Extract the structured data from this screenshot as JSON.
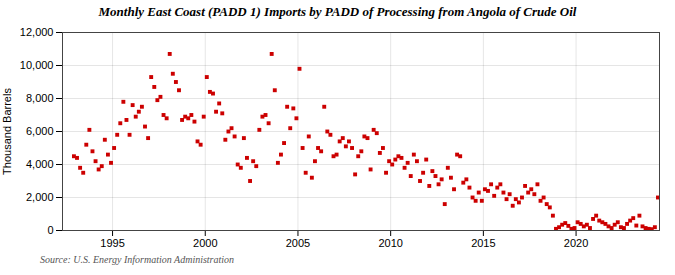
{
  "chart_data": {
    "type": "scatter",
    "title": "Monthly East Coast (PADD 1) Imports by PADD of Processing from Angola of Crude Oil",
    "ylabel": "Thousand Barrels",
    "source": "Source: U.S. Energy Information Administration",
    "color": "#cc0000",
    "marker": "square",
    "grid": true,
    "xlim": [
      1992.3,
      2024.5
    ],
    "ylim": [
      0,
      12000
    ],
    "xticks": [
      1995,
      2000,
      2005,
      2010,
      2015,
      2020
    ],
    "yticks": [
      0,
      {
        "value": 2000,
        "label": "2,000"
      },
      {
        "value": 4000,
        "label": "4,000"
      },
      {
        "value": 6000,
        "label": "6,000"
      },
      {
        "value": 8000,
        "label": "8,000"
      },
      {
        "value": 10000,
        "label": "10,000"
      },
      {
        "value": 12000,
        "label": "12,000"
      }
    ],
    "x": [
      1992.917,
      1993.083,
      1993.25,
      1993.417,
      1993.583,
      1993.75,
      1993.917,
      1994.083,
      1994.25,
      1994.417,
      1994.583,
      1994.75,
      1994.917,
      1995.083,
      1995.25,
      1995.417,
      1995.583,
      1995.75,
      1995.917,
      1996.083,
      1996.25,
      1996.417,
      1996.583,
      1996.75,
      1996.917,
      1997.083,
      1997.25,
      1997.417,
      1997.583,
      1997.75,
      1997.917,
      1998.083,
      1998.25,
      1998.417,
      1998.583,
      1998.75,
      1998.917,
      1999.083,
      1999.25,
      1999.417,
      1999.583,
      1999.75,
      1999.917,
      2000.083,
      2000.25,
      2000.417,
      2000.583,
      2000.75,
      2000.917,
      2001.083,
      2001.25,
      2001.417,
      2001.583,
      2001.75,
      2001.917,
      2002.083,
      2002.25,
      2002.417,
      2002.583,
      2002.75,
      2002.917,
      2003.083,
      2003.25,
      2003.417,
      2003.583,
      2003.75,
      2003.917,
      2004.083,
      2004.25,
      2004.417,
      2004.583,
      2004.75,
      2004.917,
      2005.083,
      2005.25,
      2005.417,
      2005.583,
      2005.75,
      2005.917,
      2006.083,
      2006.25,
      2006.417,
      2006.583,
      2006.75,
      2006.917,
      2007.083,
      2007.25,
      2007.417,
      2007.583,
      2007.75,
      2007.917,
      2008.083,
      2008.25,
      2008.417,
      2008.583,
      2008.75,
      2008.917,
      2009.083,
      2009.25,
      2009.417,
      2009.583,
      2009.75,
      2009.917,
      2010.083,
      2010.25,
      2010.417,
      2010.583,
      2010.75,
      2010.917,
      2011.083,
      2011.25,
      2011.417,
      2011.583,
      2011.75,
      2011.917,
      2012.083,
      2012.25,
      2012.417,
      2012.583,
      2012.75,
      2012.917,
      2013.083,
      2013.25,
      2013.417,
      2013.583,
      2013.75,
      2013.917,
      2014.083,
      2014.25,
      2014.417,
      2014.583,
      2014.75,
      2014.917,
      2015.083,
      2015.25,
      2015.417,
      2015.583,
      2015.75,
      2015.917,
      2016.083,
      2016.25,
      2016.417,
      2016.583,
      2016.75,
      2016.917,
      2017.083,
      2017.25,
      2017.417,
      2017.583,
      2017.75,
      2017.917,
      2018.083,
      2018.25,
      2018.417,
      2018.583,
      2018.75,
      2018.917,
      2019.083,
      2019.25,
      2019.417,
      2019.583,
      2019.75,
      2019.917,
      2020.083,
      2020.25,
      2020.417,
      2020.583,
      2020.75,
      2020.917,
      2021.083,
      2021.25,
      2021.417,
      2021.583,
      2021.75,
      2021.917,
      2022.083,
      2022.25,
      2022.417,
      2022.583,
      2022.75,
      2022.917,
      2023.083,
      2023.25,
      2023.417,
      2023.583,
      2023.75,
      2023.917,
      2024.083,
      2024.25,
      2024.417
    ],
    "values": [
      4500,
      4400,
      3800,
      3500,
      5200,
      6100,
      4800,
      4200,
      3700,
      3900,
      5500,
      4600,
      4100,
      5000,
      5800,
      6500,
      7800,
      6700,
      5800,
      7600,
      6900,
      7200,
      7500,
      6300,
      5600,
      9300,
      8700,
      7900,
      8100,
      7000,
      6800,
      10700,
      9500,
      9000,
      8500,
      6700,
      6900,
      6800,
      7000,
      6600,
      5400,
      5200,
      6900,
      9300,
      8400,
      8300,
      7200,
      7700,
      7100,
      5500,
      6000,
      6200,
      5700,
      4000,
      3800,
      5600,
      4400,
      3000,
      4200,
      3900,
      6100,
      6900,
      7000,
      6500,
      10700,
      8500,
      4100,
      4600,
      5300,
      7500,
      6200,
      7400,
      6800,
      9800,
      5000,
      3500,
      5700,
      3200,
      4200,
      5000,
      4800,
      7500,
      6000,
      5800,
      4500,
      4600,
      5400,
      5600,
      5100,
      5400,
      5000,
      3400,
      4500,
      4800,
      5700,
      5600,
      3700,
      6100,
      5900,
      4700,
      5000,
      3500,
      4200,
      4000,
      4300,
      4500,
      4400,
      3800,
      4100,
      3300,
      4600,
      4200,
      3000,
      3500,
      4300,
      2700,
      3600,
      3300,
      2800,
      3100,
      1600,
      3800,
      3200,
      2500,
      4600,
      4500,
      2900,
      3100,
      2600,
      2000,
      1800,
      2300,
      1800,
      2500,
      2400,
      2800,
      2100,
      2600,
      2800,
      2300,
      1900,
      2200,
      1500,
      1900,
      1700,
      2000,
      2700,
      2300,
      2500,
      2200,
      2800,
      1800,
      2000,
      1600,
      1400,
      900,
      100,
      200,
      350,
      450,
      280,
      100,
      150,
      500,
      400,
      250,
      350,
      150,
      700,
      900,
      600,
      500,
      400,
      250,
      150,
      350,
      500,
      200,
      150,
      400,
      600,
      750,
      300,
      900,
      250,
      150,
      100,
      80,
      200,
      2000
    ]
  }
}
